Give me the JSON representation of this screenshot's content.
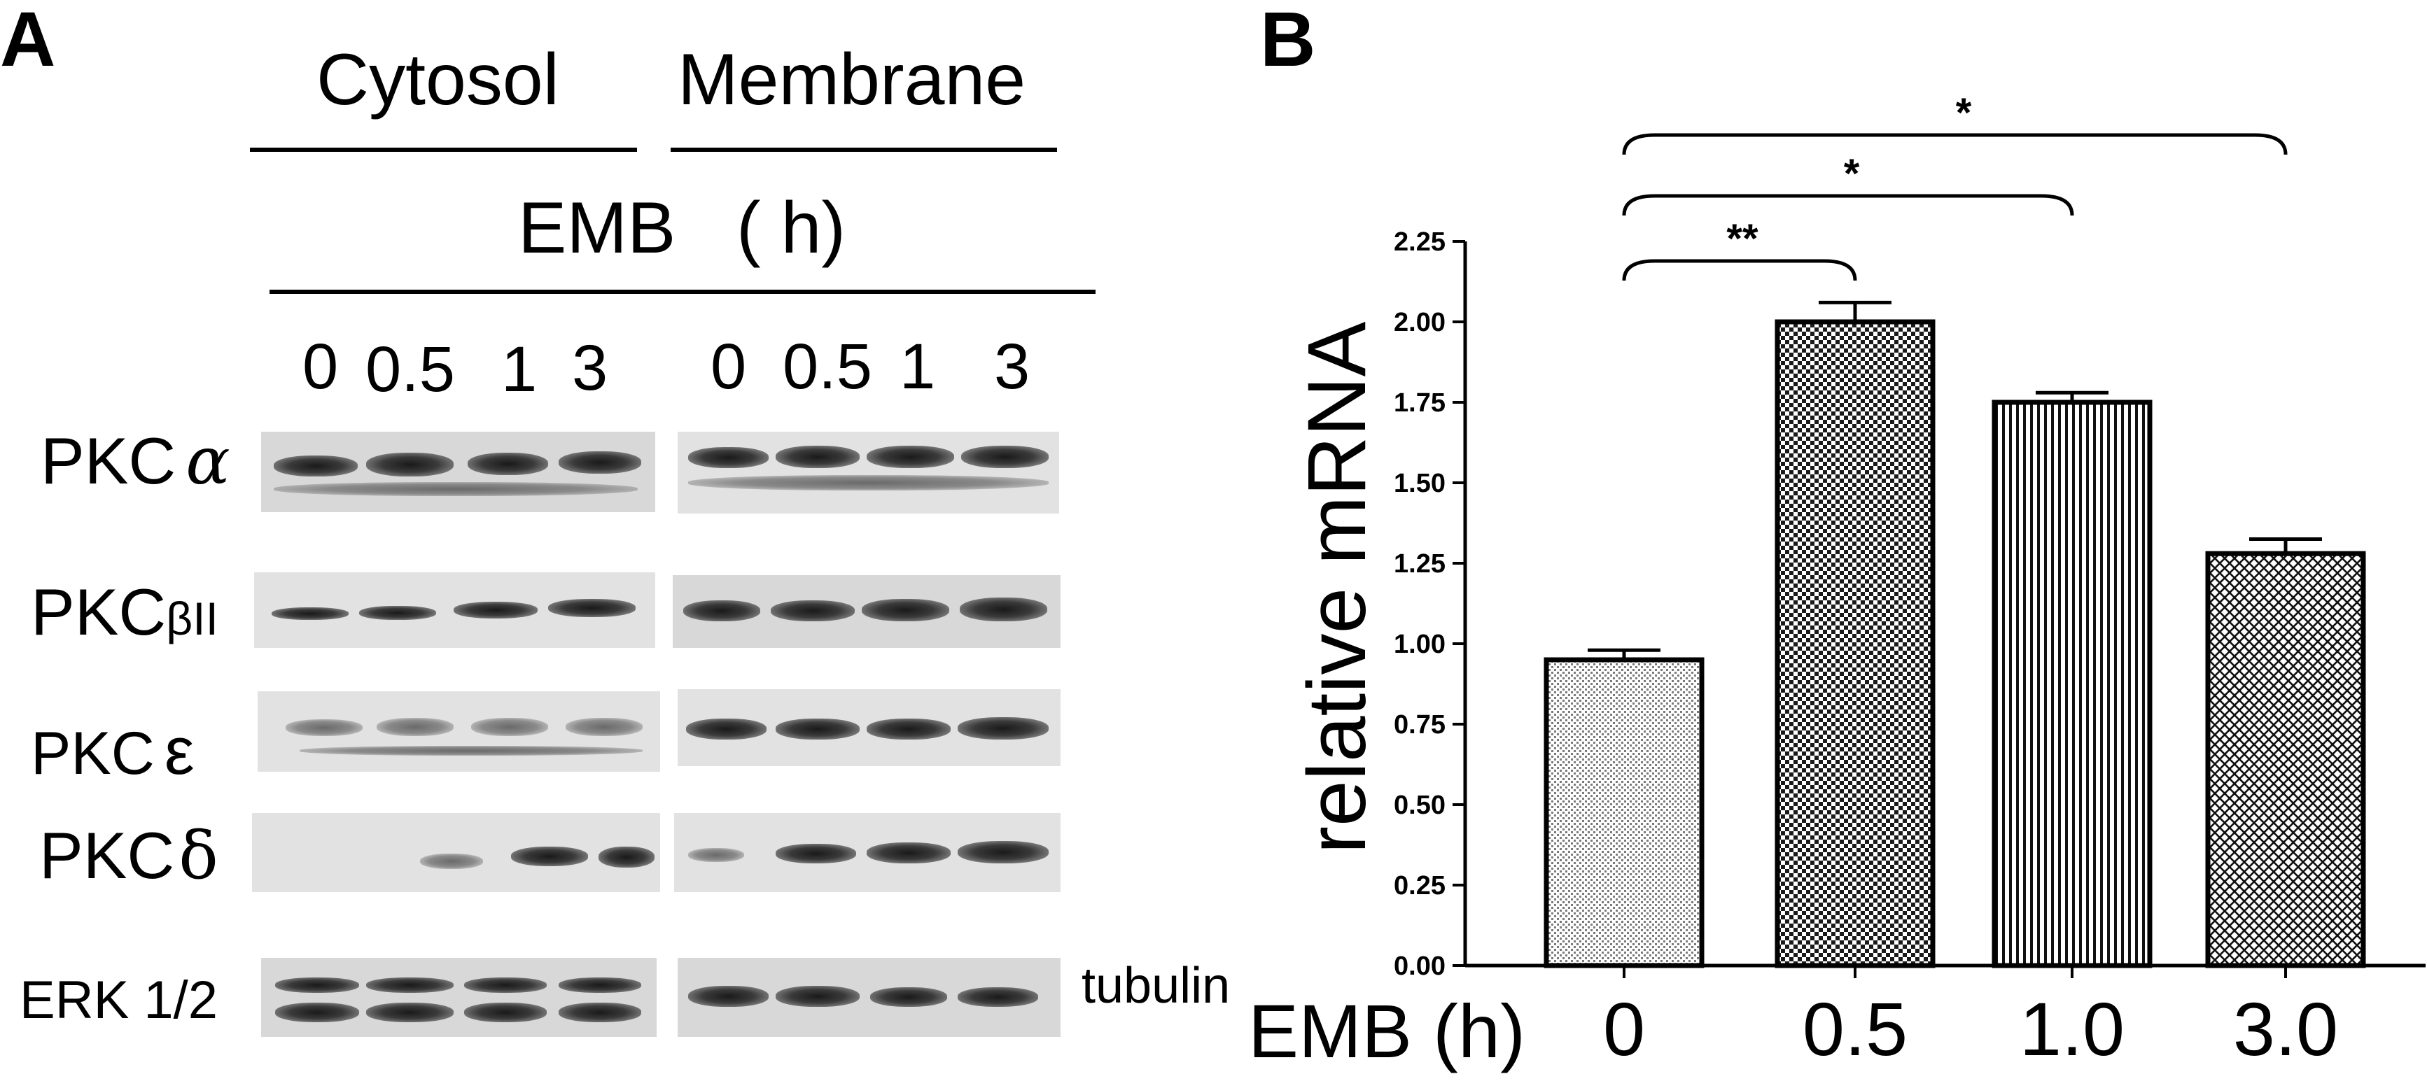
{
  "panel_a": {
    "letter": "A",
    "header_cytosol": "Cytosol",
    "header_membrane": "Membrane",
    "treatment_label": "EMB   ( h)",
    "lanes_cytosol": [
      "0",
      "0.5",
      "1",
      "3"
    ],
    "lanes_membrane": [
      "0",
      "0.5",
      "1",
      "3"
    ],
    "rows": [
      {
        "prefix": "PKC",
        "symbol": "α"
      },
      {
        "prefix": "PKC",
        "symbol": "βII"
      },
      {
        "prefix": "PKC",
        "symbol": "ε"
      },
      {
        "prefix": "PKC",
        "symbol": "δ"
      },
      {
        "prefix": "ERK 1/2",
        "symbol": ""
      }
    ],
    "side_label": "tubulin"
  },
  "panel_b": {
    "letter": "B",
    "x_axis_prefix": "EMB (h)",
    "significance": [
      "**",
      "*",
      "*"
    ]
  },
  "chart_data": {
    "type": "bar",
    "categories": [
      "0",
      "0.5",
      "1.0",
      "3.0"
    ],
    "values": [
      0.95,
      2.0,
      1.75,
      1.28
    ],
    "errors": [
      0.03,
      0.06,
      0.03,
      0.045
    ],
    "ylabel": "relative  mRNA",
    "xlabel": "EMB (h)",
    "ylim": [
      0,
      2.25
    ],
    "yticks": [
      "0.00",
      "0.25",
      "0.50",
      "0.75",
      "1.00",
      "1.25",
      "1.50",
      "1.75",
      "2.00",
      "2.25"
    ],
    "comparisons": [
      {
        "from": "0",
        "to": "0.5",
        "label": "**"
      },
      {
        "from": "0",
        "to": "1.0",
        "label": "*"
      },
      {
        "from": "0",
        "to": "3.0",
        "label": "*"
      }
    ],
    "patterns": [
      "fine-dots",
      "checker",
      "vertical-lines",
      "crosshatch"
    ],
    "grid": false,
    "legend": "none"
  }
}
